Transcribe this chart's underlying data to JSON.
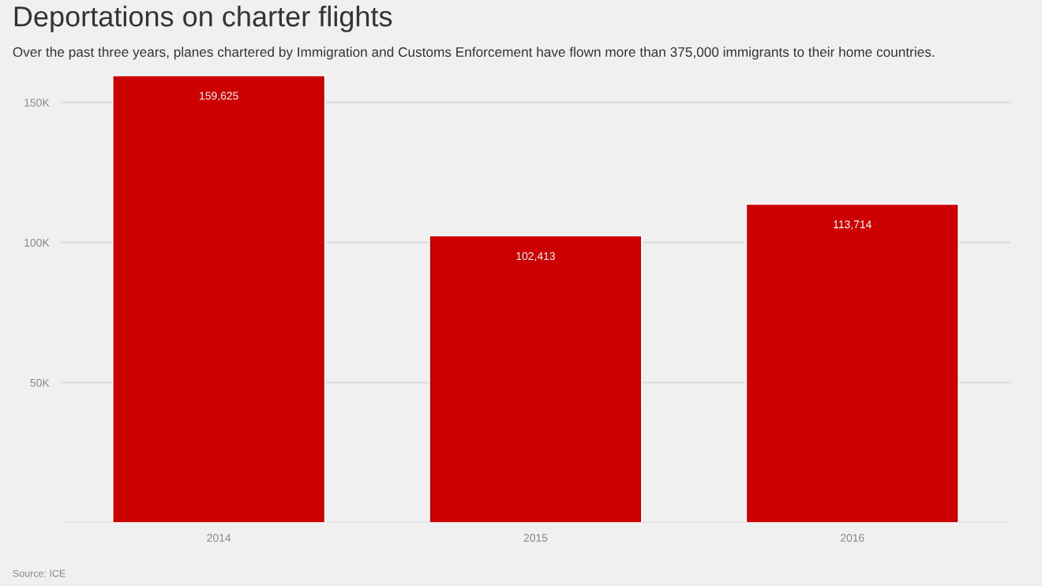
{
  "chart_data": {
    "type": "bar",
    "title": "Deportations on charter flights",
    "subtitle": "Over the past three years, planes chartered by Immigration and Customs Enforcement have flown more than 375,000 immigrants to their home countries.",
    "categories": [
      "2014",
      "2015",
      "2016"
    ],
    "values": [
      159625,
      102413,
      113714
    ],
    "color": "#cc0000",
    "value_labels": [
      "159,625",
      "102,413",
      "113,714"
    ],
    "ylim": [
      0,
      160000
    ],
    "yticks": [
      {
        "value": 0,
        "label": null
      },
      {
        "value": 50000,
        "label": "50K"
      },
      {
        "value": 100000,
        "label": "100K"
      },
      {
        "value": 150000,
        "label": "150K"
      }
    ],
    "grid": "y",
    "annotations": [
      "Source: ICE"
    ]
  }
}
